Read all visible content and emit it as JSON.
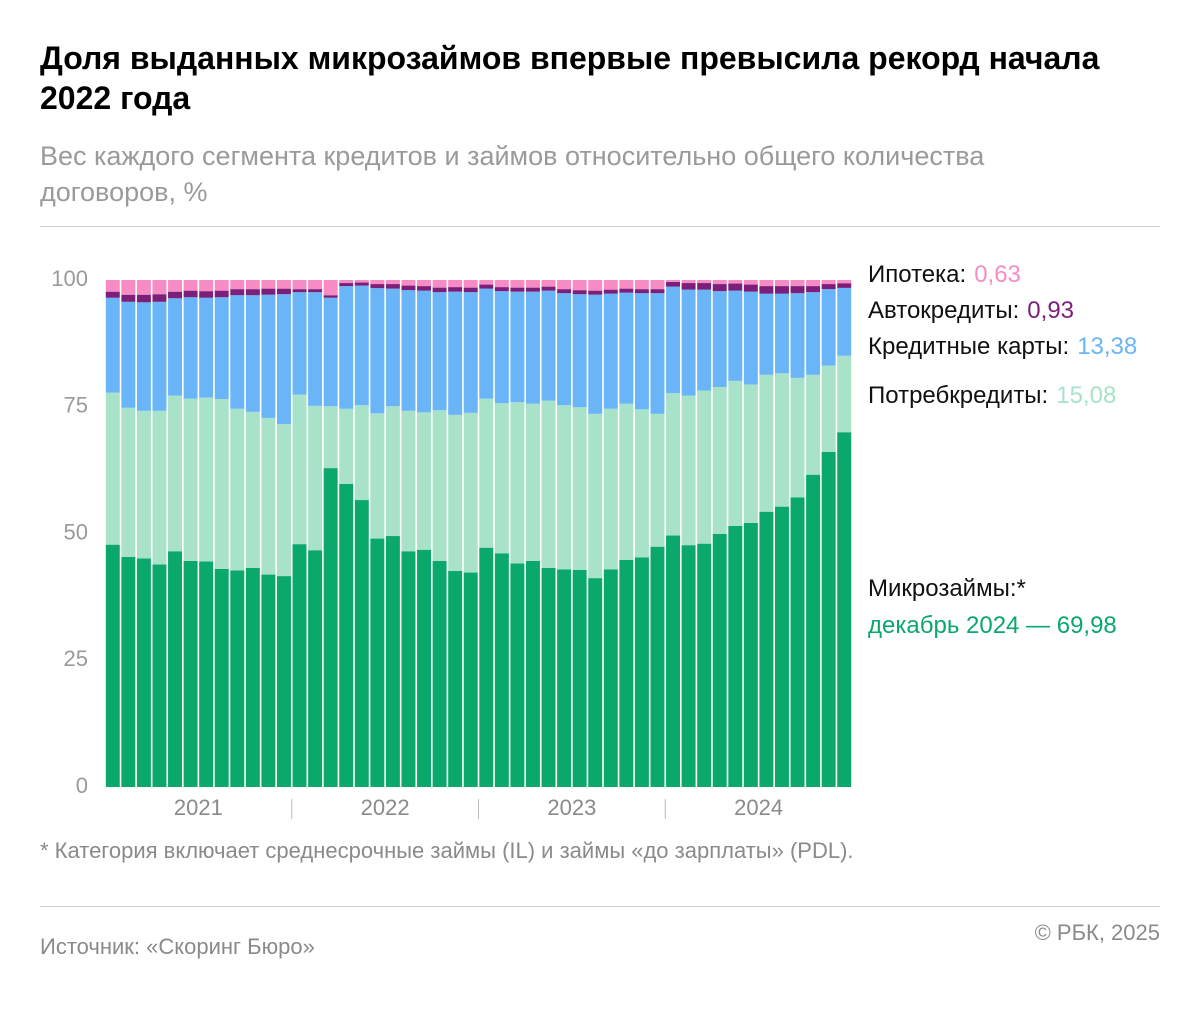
{
  "chart_data": {
    "type": "stacked_bar",
    "title": "Доля выданных микрозаймов впервые превысила рекорд начала 2022 года",
    "subtitle": "Вес каждого сегмента кредитов и займов относительно общего количества договоров, %",
    "footnote": "* Категория включает среднесрочные займы (IL) и займы «до зарплаты» (PDL).",
    "source": "Источник: «Скоринг Бюро»",
    "copyright": "© РБК, 2025",
    "categories": [
      null,
      null,
      null,
      null,
      null,
      null,
      null,
      null,
      null,
      null,
      null,
      null,
      null,
      null,
      null,
      null,
      null,
      null,
      null,
      null,
      null,
      null,
      null,
      null,
      null,
      null,
      null,
      null,
      null,
      null,
      null,
      null,
      null,
      null,
      null,
      null,
      null,
      null,
      null,
      null,
      null,
      null,
      null,
      null,
      null,
      null,
      null,
      null
    ],
    "x_group_labels": [
      "2021",
      "2022",
      "2023",
      "2024"
    ],
    "ylim": [
      0,
      100
    ],
    "yticks": [
      0,
      25,
      50,
      75,
      100
    ],
    "series": [
      {
        "name": "Микрозаймы:*",
        "color": "#0aa86b",
        "values": [
          47.8,
          45.4,
          45.1,
          43.9,
          46.5,
          44.6,
          44.5,
          43.0,
          42.7,
          43.2,
          41.9,
          41.6,
          47.9,
          46.7,
          62.9,
          59.8,
          56.6,
          49.0,
          49.5,
          46.5,
          46.8,
          44.6,
          42.6,
          42.3,
          47.2,
          46.1,
          44.1,
          44.6,
          43.2,
          42.9,
          42.8,
          41.2,
          42.9,
          44.8,
          45.3,
          47.4,
          49.6,
          47.7,
          48.0,
          49.9,
          51.5,
          52.1,
          54.3,
          55.3,
          57.1,
          61.6,
          66.1,
          69.98
        ],
        "value_labels": [
          null,
          null,
          null,
          null,
          null,
          null,
          null,
          null,
          null,
          null,
          null,
          null,
          null,
          null,
          null,
          null,
          null,
          null,
          null,
          null,
          null,
          null,
          null,
          null,
          null,
          null,
          null,
          null,
          null,
          null,
          null,
          null,
          null,
          null,
          null,
          null,
          null,
          null,
          null,
          null,
          null,
          null,
          null,
          null,
          null,
          null,
          null,
          "декабрь 2024 — 69,98"
        ]
      },
      {
        "name": "Потребкредиты:",
        "color": "#a8e2c8",
        "values": [
          30.0,
          29.4,
          29.1,
          30.3,
          30.7,
          32.0,
          32.3,
          33.5,
          31.9,
          30.8,
          30.9,
          30.0,
          29.5,
          28.5,
          12.2,
          14.8,
          18.7,
          24.7,
          25.6,
          27.7,
          27.1,
          29.7,
          30.8,
          31.5,
          29.4,
          29.6,
          31.8,
          31.0,
          33.0,
          32.4,
          32.1,
          32.4,
          31.7,
          30.8,
          29.2,
          26.2,
          28.1,
          29.5,
          30.2,
          29.0,
          28.6,
          27.3,
          27.0,
          26.3,
          23.6,
          19.7,
          17.0,
          15.08
        ],
        "value_labels": [
          null,
          null,
          null,
          null,
          null,
          null,
          null,
          null,
          null,
          null,
          null,
          null,
          null,
          null,
          null,
          null,
          null,
          null,
          null,
          null,
          null,
          null,
          null,
          null,
          null,
          null,
          null,
          null,
          null,
          null,
          null,
          null,
          null,
          null,
          null,
          null,
          null,
          null,
          null,
          null,
          null,
          null,
          null,
          null,
          null,
          null,
          null,
          "15,08"
        ]
      },
      {
        "name": "Кредитные карты:",
        "color": "#6ab4f8",
        "values": [
          18.7,
          20.9,
          21.4,
          21.5,
          19.2,
          20.0,
          19.7,
          20.1,
          22.4,
          23.0,
          24.3,
          25.6,
          20.2,
          22.4,
          21.4,
          24.2,
          23.6,
          24.7,
          23.2,
          23.8,
          24.0,
          23.3,
          24.3,
          23.8,
          21.7,
          22.1,
          21.8,
          22.1,
          21.7,
          22.1,
          22.3,
          23.5,
          22.7,
          21.9,
          22.9,
          23.8,
          21.0,
          20.9,
          19.9,
          18.9,
          17.8,
          18.3,
          16.0,
          15.7,
          16.7,
          16.3,
          15.1,
          13.38
        ],
        "value_labels": [
          null,
          null,
          null,
          null,
          null,
          null,
          null,
          null,
          null,
          null,
          null,
          null,
          null,
          null,
          null,
          null,
          null,
          null,
          null,
          null,
          null,
          null,
          null,
          null,
          null,
          null,
          null,
          null,
          null,
          null,
          null,
          null,
          null,
          null,
          null,
          null,
          null,
          null,
          null,
          null,
          null,
          null,
          null,
          null,
          null,
          null,
          null,
          "13,38"
        ]
      },
      {
        "name": "Автокредиты:",
        "color": "#7b1f7a",
        "values": [
          1.2,
          1.4,
          1.5,
          1.5,
          1.3,
          1.3,
          1.3,
          1.3,
          1.2,
          1.2,
          1.2,
          1.1,
          0.6,
          0.6,
          0.5,
          0.6,
          0.6,
          0.8,
          0.9,
          0.9,
          0.9,
          0.9,
          0.9,
          0.9,
          0.8,
          0.8,
          0.8,
          0.8,
          0.8,
          0.8,
          0.8,
          0.8,
          0.8,
          0.8,
          0.8,
          0.8,
          0.9,
          1.3,
          1.3,
          1.4,
          1.4,
          1.4,
          1.5,
          1.5,
          1.4,
          1.2,
          1.0,
          0.93
        ],
        "value_labels": [
          null,
          null,
          null,
          null,
          null,
          null,
          null,
          null,
          null,
          null,
          null,
          null,
          null,
          null,
          null,
          null,
          null,
          null,
          null,
          null,
          null,
          null,
          null,
          null,
          null,
          null,
          null,
          null,
          null,
          null,
          null,
          null,
          null,
          null,
          null,
          null,
          null,
          null,
          null,
          null,
          null,
          null,
          null,
          null,
          null,
          null,
          null,
          "0,93"
        ]
      },
      {
        "name": "Ипотека:",
        "color": "#f78cc4",
        "values": [
          2.3,
          2.9,
          2.9,
          2.8,
          2.3,
          2.1,
          2.2,
          2.1,
          1.8,
          1.8,
          1.7,
          1.7,
          1.8,
          1.8,
          3.0,
          0.6,
          0.5,
          0.8,
          0.8,
          1.1,
          1.2,
          1.5,
          1.4,
          1.5,
          0.9,
          1.4,
          1.5,
          1.5,
          1.3,
          1.8,
          2.0,
          2.1,
          1.9,
          1.7,
          1.8,
          1.8,
          0.4,
          0.6,
          0.6,
          0.8,
          0.7,
          0.9,
          1.2,
          1.2,
          1.2,
          1.2,
          0.8,
          0.63
        ],
        "value_labels": [
          null,
          null,
          null,
          null,
          null,
          null,
          null,
          null,
          null,
          null,
          null,
          null,
          null,
          null,
          null,
          null,
          null,
          null,
          null,
          null,
          null,
          null,
          null,
          null,
          null,
          null,
          null,
          null,
          null,
          null,
          null,
          null,
          null,
          null,
          null,
          null,
          null,
          null,
          null,
          null,
          null,
          null,
          null,
          null,
          null,
          null,
          null,
          "0,63"
        ]
      }
    ]
  }
}
